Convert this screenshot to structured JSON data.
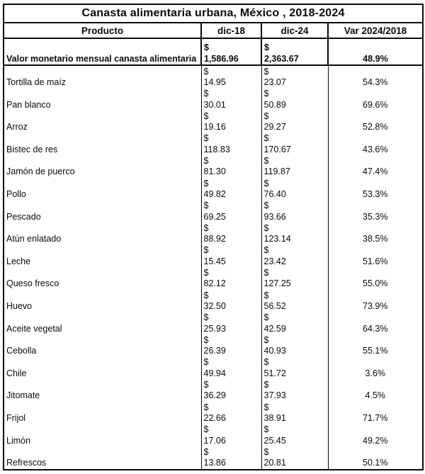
{
  "title": "Canasta alimentaria urbana, México , 2018-2024",
  "currency_symbol": "$",
  "chart_data": {
    "type": "table",
    "title": "Canasta alimentaria urbana, México , 2018-2024",
    "columns": [
      "Producto",
      "dic-18",
      "dic-24",
      "Var 2024/2018"
    ],
    "summary_row": {
      "product": "Valor monetario mensual canasta alimentaria",
      "dic18": "1,586.96",
      "dic24": "2,363.67",
      "variation": "48.9%"
    },
    "rows": [
      {
        "product": "Tortilla de maíz",
        "dic18": "14.95",
        "dic24": "23.07",
        "variation": "54.3%"
      },
      {
        "product": "Pan blanco",
        "dic18": "30.01",
        "dic24": "50.89",
        "variation": "69.6%"
      },
      {
        "product": "Arroz",
        "dic18": "19.16",
        "dic24": "29.27",
        "variation": "52.8%"
      },
      {
        "product": "Bistec de res",
        "dic18": "118.83",
        "dic24": "170.67",
        "variation": "43.6%"
      },
      {
        "product": "Jamón de puerco",
        "dic18": "81.30",
        "dic24": "119.87",
        "variation": "47.4%"
      },
      {
        "product": "Pollo",
        "dic18": "49.82",
        "dic24": "76.40",
        "variation": "53.3%"
      },
      {
        "product": "Pescado",
        "dic18": "69.25",
        "dic24": "93.66",
        "variation": "35.3%"
      },
      {
        "product": "Atún enlatado",
        "dic18": "88.92",
        "dic24": "123.14",
        "variation": "38.5%"
      },
      {
        "product": "Leche",
        "dic18": "15.45",
        "dic24": "23.42",
        "variation": "51.6%"
      },
      {
        "product": "Queso fresco",
        "dic18": "82.12",
        "dic24": "127.25",
        "variation": "55.0%"
      },
      {
        "product": "Huevo",
        "dic18": "32.50",
        "dic24": "56.52",
        "variation": "73.9%"
      },
      {
        "product": "Aceite vegetal",
        "dic18": "25.93",
        "dic24": "42.59",
        "variation": "64.3%"
      },
      {
        "product": "Cebolla",
        "dic18": "26.39",
        "dic24": "40.93",
        "variation": "55.1%"
      },
      {
        "product": "Chile",
        "dic18": "49.94",
        "dic24": "51.72",
        "variation": "3.6%"
      },
      {
        "product": "Jitomate",
        "dic18": "36.29",
        "dic24": "37.93",
        "variation": "4.5%"
      },
      {
        "product": "Frijol",
        "dic18": "22.66",
        "dic24": "38.91",
        "variation": "71.7%"
      },
      {
        "product": "Limón",
        "dic18": "17.06",
        "dic24": "25.45",
        "variation": "49.2%"
      },
      {
        "product": "Refrescos",
        "dic18": "13.86",
        "dic24": "20.81",
        "variation": "50.1%"
      }
    ]
  }
}
